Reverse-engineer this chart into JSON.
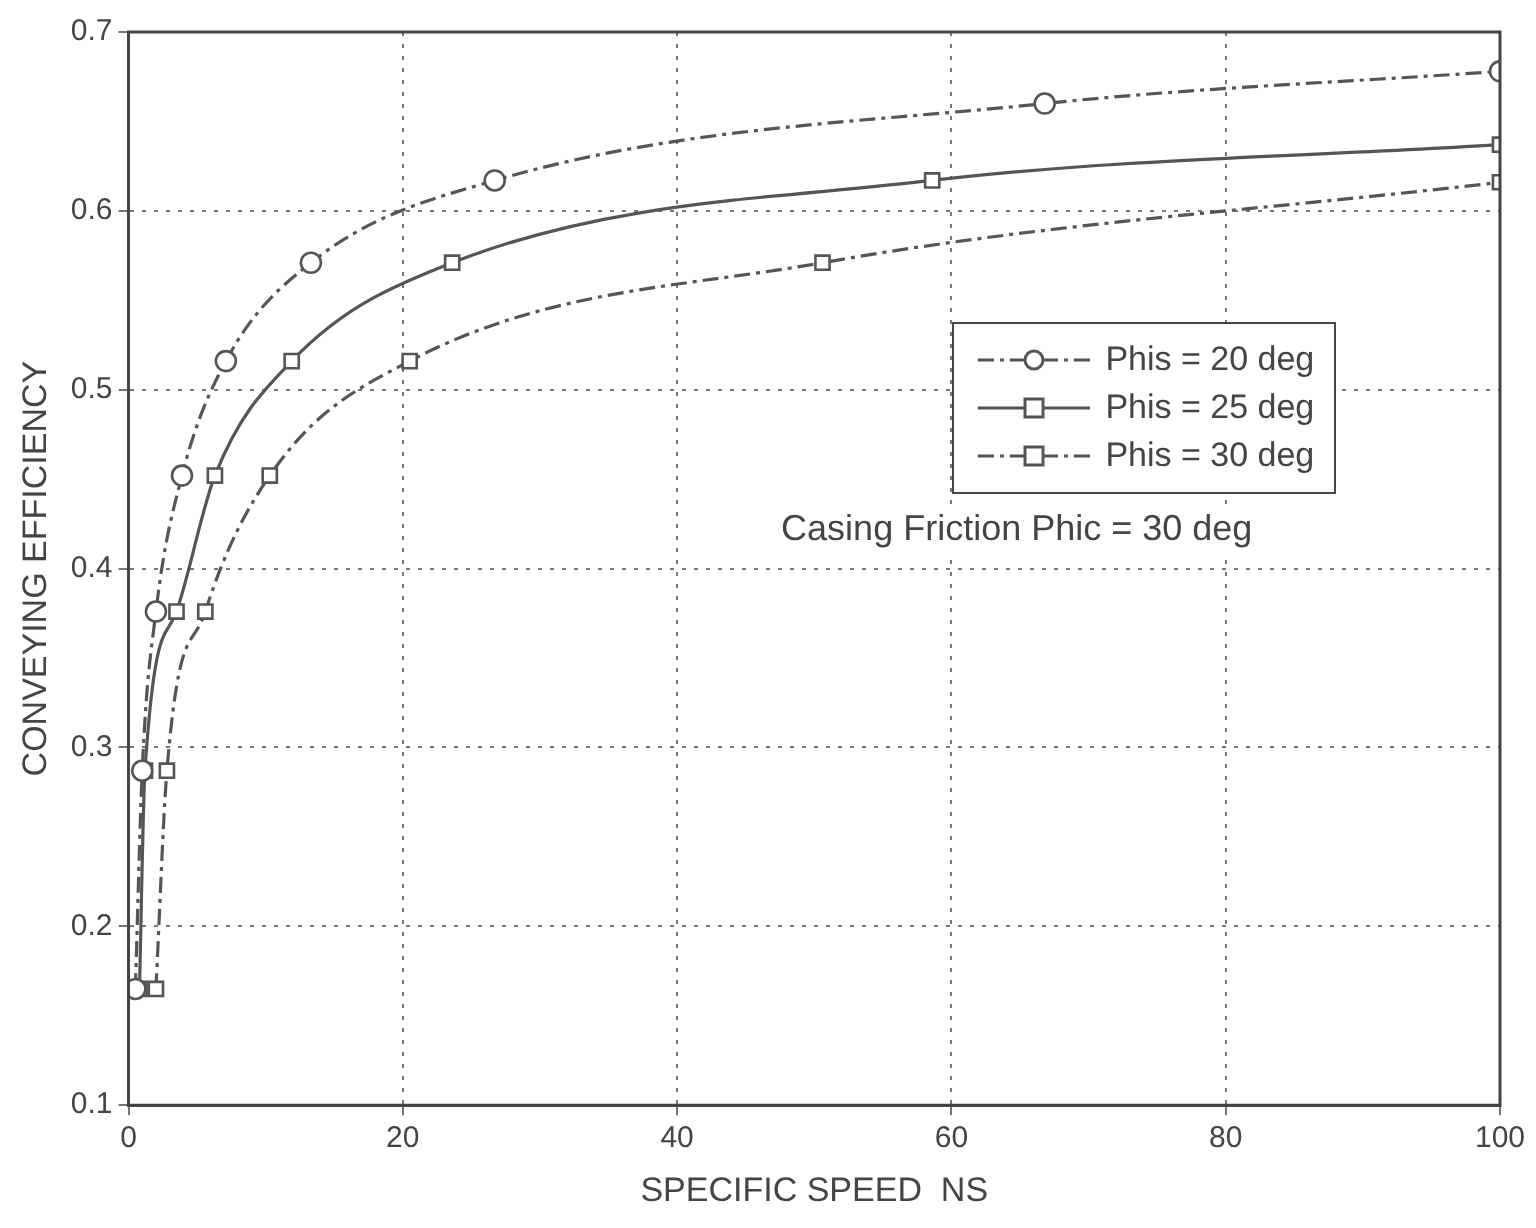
{
  "chart_data": {
    "type": "line",
    "xlabel": "SPECIFIC SPEED  NS",
    "ylabel": "CONVEYING EFFICIENCY",
    "xlim": [
      0,
      100
    ],
    "xticks": [
      0,
      20,
      40,
      60,
      80,
      100
    ],
    "ylim": [
      0.1,
      0.7
    ],
    "yticks": [
      0.1,
      0.2,
      0.3,
      0.4,
      0.5,
      0.6,
      0.7
    ],
    "grid": true,
    "legend": "right",
    "annotations": [
      "Casing Friction Phic = 30 deg"
    ],
    "series": [
      {
        "name": "Phis = 20 deg",
        "color": "#555555",
        "marker": "circle",
        "line_style": "dashed",
        "x": [
          0.5,
          1.0,
          2.0,
          3.9,
          7.1,
          13.3,
          26.7,
          66.8,
          100
        ],
        "values": [
          0.165,
          0.287,
          0.376,
          0.452,
          0.516,
          0.571,
          0.617,
          0.66,
          0.678
        ]
      },
      {
        "name": "Phis = 25 deg",
        "color": "#555555",
        "marker": "square",
        "line_style": "solid",
        "x": [
          0.8,
          1.2,
          3.5,
          6.3,
          11.9,
          23.6,
          58.6,
          100
        ],
        "values": [
          0.165,
          0.287,
          0.376,
          0.452,
          0.516,
          0.571,
          0.617,
          0.637
        ]
      },
      {
        "name": "Phis = 30 deg",
        "color": "#555555",
        "marker": "square",
        "line_style": "dashed",
        "x": [
          2.0,
          2.8,
          5.6,
          10.3,
          20.5,
          50.6,
          100
        ],
        "values": [
          0.165,
          0.287,
          0.376,
          0.452,
          0.516,
          0.571,
          0.616
        ]
      }
    ]
  }
}
